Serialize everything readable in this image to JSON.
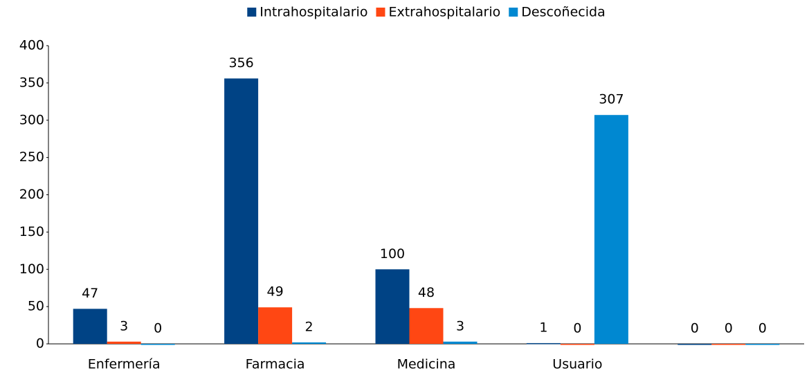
{
  "chart_data": {
    "type": "bar",
    "categories": [
      "Enfermería",
      "Farmacia",
      "Medicina",
      "Usuario",
      null
    ],
    "series": [
      {
        "name": "Intrahospitalario",
        "color": "#004385",
        "values": [
          47,
          356,
          100,
          1,
          0
        ]
      },
      {
        "name": "Extrahospitalario",
        "color": "#ff4713",
        "values": [
          3,
          49,
          48,
          0,
          0
        ]
      },
      {
        "name": "Descoñecida",
        "color": "#0088d1",
        "values": [
          0,
          2,
          3,
          307,
          0
        ]
      }
    ],
    "ylim": [
      0,
      400
    ],
    "yticks": [
      0,
      50,
      100,
      150,
      200,
      250,
      300,
      350,
      400
    ],
    "grid": false,
    "legend": "top"
  }
}
